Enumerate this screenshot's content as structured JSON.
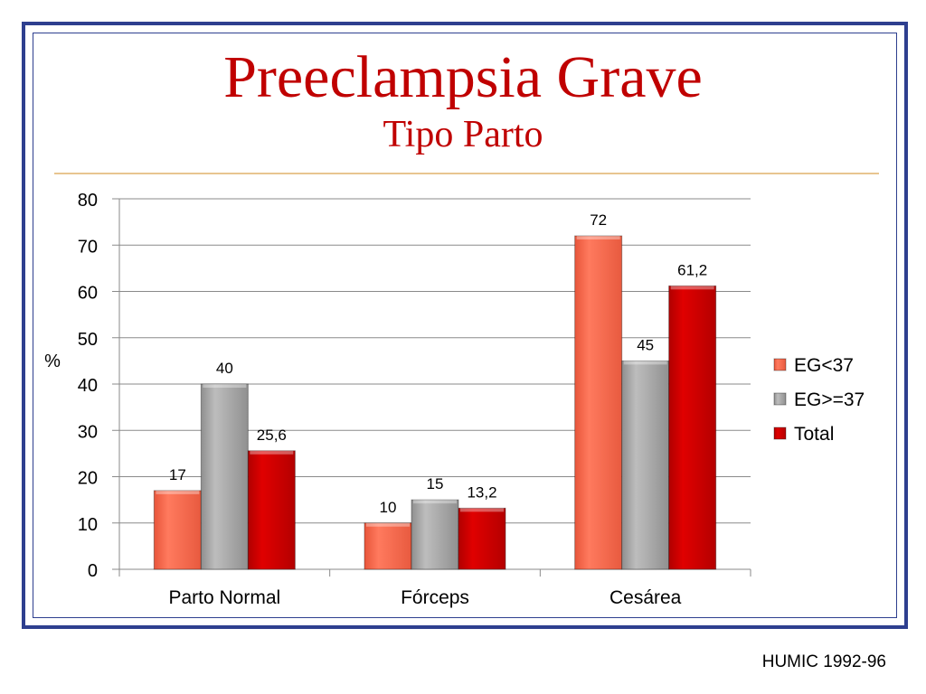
{
  "slide": {
    "title": "Preeclampsia Grave",
    "subtitle": "Tipo Parto",
    "source": "HUMIC 1992-96"
  },
  "colors": {
    "frame": "#2e3f8f",
    "title": "#c00000",
    "rule": "#e8c590"
  },
  "chart_data": {
    "type": "bar",
    "categories": [
      "Parto Normal",
      "Fórceps",
      "Cesárea"
    ],
    "series": [
      {
        "name": "EG<37",
        "values": [
          17,
          10,
          72
        ],
        "labels": [
          "17",
          "10",
          "72"
        ],
        "color": "#ff6a4d"
      },
      {
        "name": "EG>=37",
        "values": [
          40,
          15,
          45
        ],
        "labels": [
          "40",
          "15",
          "45"
        ],
        "color": "#a8a8a8"
      },
      {
        "name": "Total",
        "values": [
          25.6,
          13.2,
          61.2
        ],
        "labels": [
          "25,6",
          "13,2",
          "61,2"
        ],
        "color": "#d00000"
      }
    ],
    "ylabel": "%",
    "ylim": [
      0,
      80
    ],
    "yticks": [
      0,
      10,
      20,
      30,
      40,
      50,
      60,
      70,
      80
    ],
    "grid": true,
    "legend": "right"
  }
}
